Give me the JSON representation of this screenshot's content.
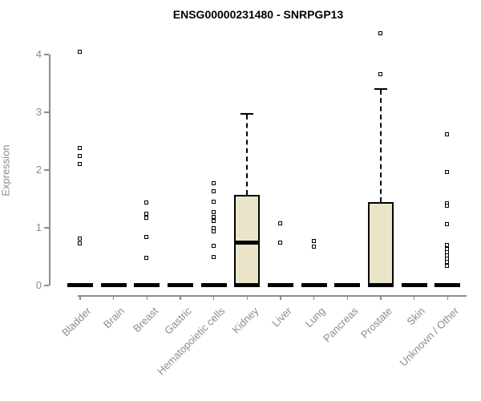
{
  "chart_data": {
    "type": "boxplot",
    "title": "ENSG00000231480 - SNRPGP13",
    "ylabel": "Expression",
    "xlabel": "",
    "ylim": [
      0,
      4.45
    ],
    "yticks": [
      0,
      1,
      2,
      3,
      4
    ],
    "grid": false,
    "legend_position": "none",
    "colors": {
      "box_fill": "#EAE5C9",
      "box_border": "#000000",
      "whisker": "#000000",
      "axis": "#8C8C8C",
      "tick_label": "#8C8C8C",
      "title": "#000000"
    },
    "categories": [
      "Bladder",
      "Brain",
      "Breast",
      "Gastric",
      "Hematopoietic cells",
      "Kidney",
      "Liver",
      "Lung",
      "Pancreas",
      "Prostate",
      "Skin",
      "Unknown / Other"
    ],
    "boxes": [
      {
        "category": "Bladder",
        "q1": 0,
        "median": 0,
        "q3": 0,
        "whisker_low": 0,
        "whisker_high": 0,
        "outliers": [
          4.04,
          2.37,
          2.24,
          2.1,
          0.8,
          0.72
        ]
      },
      {
        "category": "Brain",
        "q1": 0,
        "median": 0,
        "q3": 0,
        "whisker_low": 0,
        "whisker_high": 0,
        "outliers": []
      },
      {
        "category": "Breast",
        "q1": 0,
        "median": 0,
        "q3": 0,
        "whisker_low": 0,
        "whisker_high": 0,
        "outliers": [
          1.43,
          1.24,
          1.17,
          0.83,
          0.47
        ]
      },
      {
        "category": "Gastric",
        "q1": 0,
        "median": 0,
        "q3": 0,
        "whisker_low": 0,
        "whisker_high": 0,
        "outliers": []
      },
      {
        "category": "Hematopoietic cells",
        "q1": 0,
        "median": 0,
        "q3": 0,
        "whisker_low": 0,
        "whisker_high": 0,
        "outliers": [
          1.76,
          1.63,
          1.44,
          1.26,
          1.18,
          1.11,
          0.98,
          0.93,
          0.68,
          0.49
        ]
      },
      {
        "category": "Kidney",
        "q1": 0,
        "median": 0.75,
        "q3": 1.57,
        "whisker_low": 0,
        "whisker_high": 2.97,
        "outliers": []
      },
      {
        "category": "Liver",
        "q1": 0,
        "median": 0,
        "q3": 0,
        "whisker_low": 0,
        "whisker_high": 0,
        "outliers": [
          1.07,
          0.74
        ]
      },
      {
        "category": "Lung",
        "q1": 0,
        "median": 0,
        "q3": 0,
        "whisker_low": 0,
        "whisker_high": 0,
        "outliers": [
          0.76,
          0.67
        ]
      },
      {
        "category": "Pancreas",
        "q1": 0,
        "median": 0,
        "q3": 0,
        "whisker_low": 0,
        "whisker_high": 0,
        "outliers": []
      },
      {
        "category": "Prostate",
        "q1": 0,
        "median": 0,
        "q3": 1.44,
        "whisker_low": 0,
        "whisker_high": 3.4,
        "outliers": [
          4.36,
          3.65
        ]
      },
      {
        "category": "Skin",
        "q1": 0,
        "median": 0,
        "q3": 0,
        "whisker_low": 0,
        "whisker_high": 0,
        "outliers": []
      },
      {
        "category": "Unknown / Other",
        "q1": 0,
        "median": 0,
        "q3": 0,
        "whisker_low": 0,
        "whisker_high": 0,
        "outliers": [
          2.61,
          1.96,
          1.42,
          1.37,
          1.06,
          0.7,
          0.63,
          0.57,
          0.51,
          0.46,
          0.4,
          0.33
        ]
      }
    ]
  }
}
